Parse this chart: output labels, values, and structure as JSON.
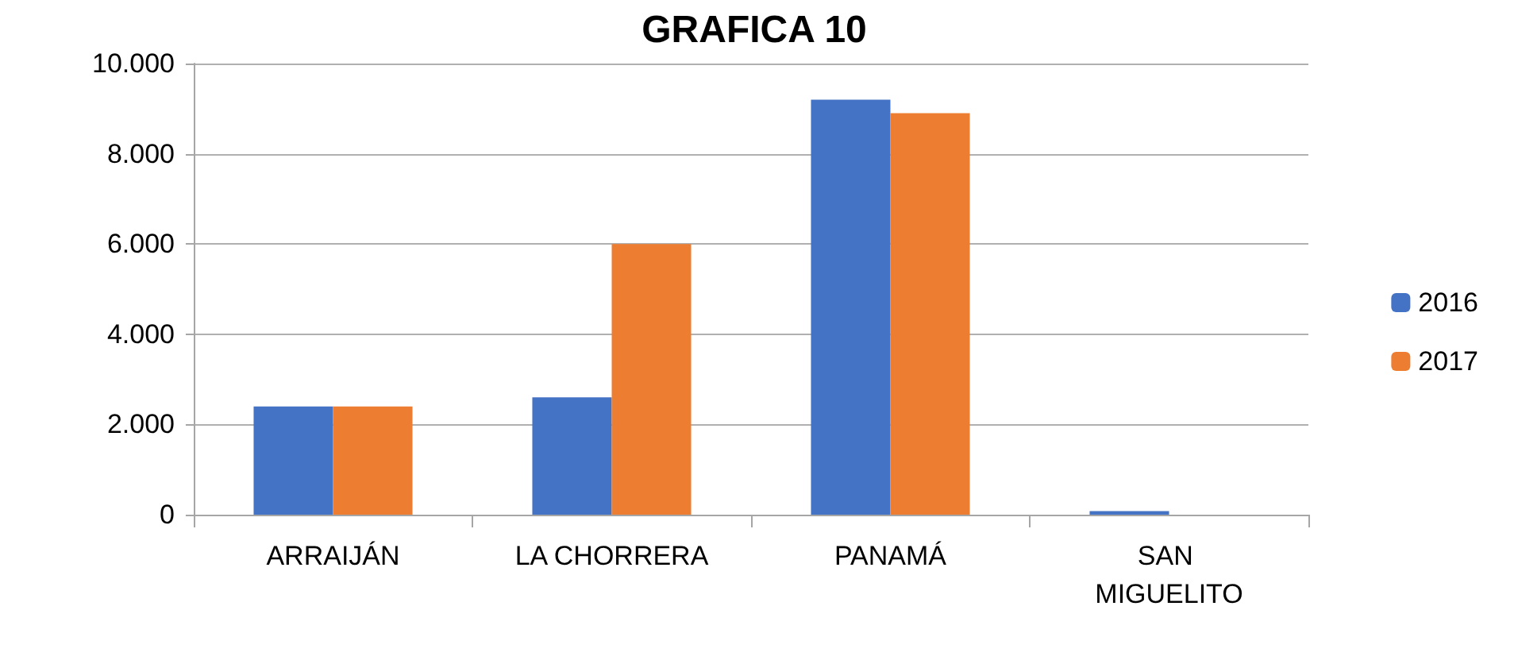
{
  "chart_data": {
    "type": "bar",
    "title": "GRAFICA 10",
    "categories": [
      "ARRAIJÁN",
      "LA CHORRERA",
      "PANAMÁ",
      "SAN MIGUELITO"
    ],
    "series": [
      {
        "name": "2016",
        "color": "#4472c4",
        "values": [
          2400,
          2600,
          9200,
          80
        ]
      },
      {
        "name": "2017",
        "color": "#ed7d31",
        "values": [
          2400,
          6000,
          8900,
          0
        ]
      }
    ],
    "ylim": [
      0,
      10000
    ],
    "yticks": [
      {
        "value": 0,
        "label": "0"
      },
      {
        "value": 2000,
        "label": "2.000"
      },
      {
        "value": 4000,
        "label": "4.000"
      },
      {
        "value": 6000,
        "label": "6.000"
      },
      {
        "value": 8000,
        "label": "8.000"
      },
      {
        "value": 10000,
        "label": "10.000"
      }
    ],
    "grid": "y",
    "legend": "right"
  }
}
